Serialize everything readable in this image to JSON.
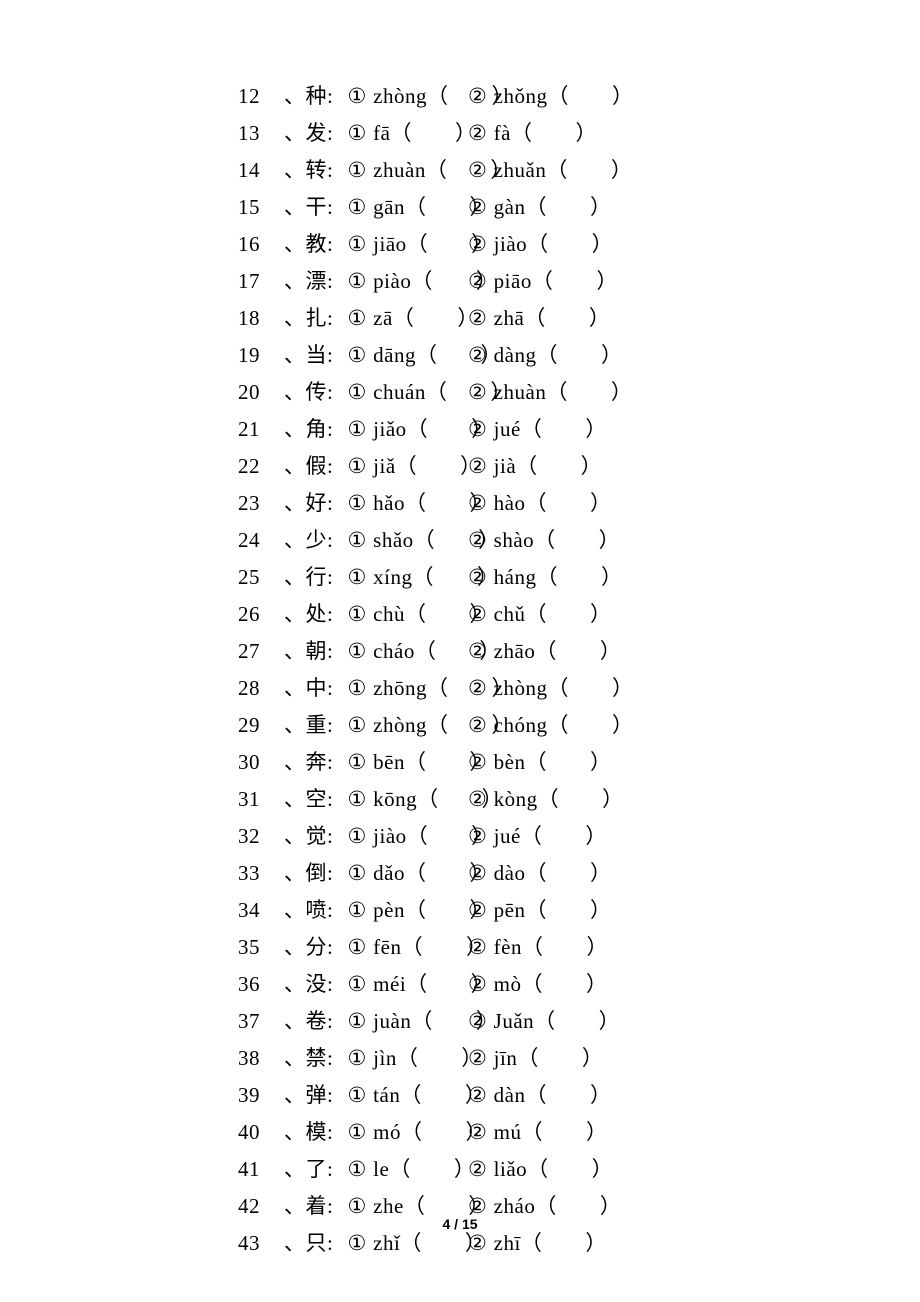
{
  "page": {
    "current": "4",
    "total": "15",
    "separator": " / "
  },
  "circled": {
    "one": "①",
    "two": "②"
  },
  "sep": "、",
  "colon": ":",
  "open": "（",
  "close": "）",
  "entries": [
    {
      "n": "12",
      "ch": "种",
      "p1": "zhòng",
      "p2": "zhǒng"
    },
    {
      "n": "13",
      "ch": "发",
      "p1": "fā",
      "p2": "fà"
    },
    {
      "n": "14",
      "ch": "转",
      "p1": "zhuàn",
      "p2": "zhuǎn"
    },
    {
      "n": "15",
      "ch": "干",
      "p1": "gān",
      "p2": "gàn"
    },
    {
      "n": "16",
      "ch": "教",
      "p1": "jiāo",
      "p2": "jiào"
    },
    {
      "n": "17",
      "ch": "漂",
      "p1": "piào",
      "p2": "piāo"
    },
    {
      "n": "18",
      "ch": "扎",
      "p1": "zā",
      "p2": "zhā"
    },
    {
      "n": "19",
      "ch": "当",
      "p1": "dāng",
      "p2": "dàng"
    },
    {
      "n": "20",
      "ch": "传",
      "p1": "chuán",
      "p2": "zhuàn"
    },
    {
      "n": "21",
      "ch": "角",
      "p1": "jiǎo",
      "p2": "jué"
    },
    {
      "n": "22",
      "ch": "假",
      "p1": "jiǎ",
      "p2": "jià"
    },
    {
      "n": "23",
      "ch": "好",
      "p1": "hǎo",
      "p2": "hào"
    },
    {
      "n": "24",
      "ch": "少",
      "p1": "shǎo",
      "p2": "shào"
    },
    {
      "n": "25",
      "ch": "行",
      "p1": "xíng",
      "p2": "háng"
    },
    {
      "n": "26",
      "ch": "处",
      "p1": "chù",
      "p2": "chǔ"
    },
    {
      "n": "27",
      "ch": "朝",
      "p1": "cháo",
      "p2": "zhāo"
    },
    {
      "n": "28",
      "ch": "中",
      "p1": "zhōng",
      "p2": "zhòng"
    },
    {
      "n": "29",
      "ch": "重",
      "p1": "zhòng",
      "p2": "chóng"
    },
    {
      "n": "30",
      "ch": "奔",
      "p1": "bēn",
      "p2": "bèn"
    },
    {
      "n": "31",
      "ch": "空",
      "p1": "kōng",
      "p2": "kòng"
    },
    {
      "n": "32",
      "ch": "觉",
      "p1": "jiào",
      "p2": "jué"
    },
    {
      "n": "33",
      "ch": "倒",
      "p1": "dǎo",
      "p2": "dào"
    },
    {
      "n": "34",
      "ch": "喷",
      "p1": "pèn",
      "p2": "pēn"
    },
    {
      "n": "35",
      "ch": "分",
      "p1": "fēn",
      "p2": "fèn"
    },
    {
      "n": "36",
      "ch": "没",
      "p1": "méi",
      "p2": "mò"
    },
    {
      "n": "37",
      "ch": "卷",
      "p1": "juàn",
      "p2": "Juǎn"
    },
    {
      "n": "38",
      "ch": "禁",
      "p1": "jìn",
      "p2": "jīn"
    },
    {
      "n": "39",
      "ch": "弹",
      "p1": "tán",
      "p2": "dàn"
    },
    {
      "n": "40",
      "ch": "模",
      "p1": "mó",
      "p2": "mú"
    },
    {
      "n": "41",
      "ch": "了",
      "p1": "le",
      "p2": "liǎo"
    },
    {
      "n": "42",
      "ch": "着",
      "p1": "zhe",
      "p2": "zháo"
    },
    {
      "n": "43",
      "ch": "只",
      "p1": "zhǐ",
      "p2": "zhī"
    }
  ]
}
